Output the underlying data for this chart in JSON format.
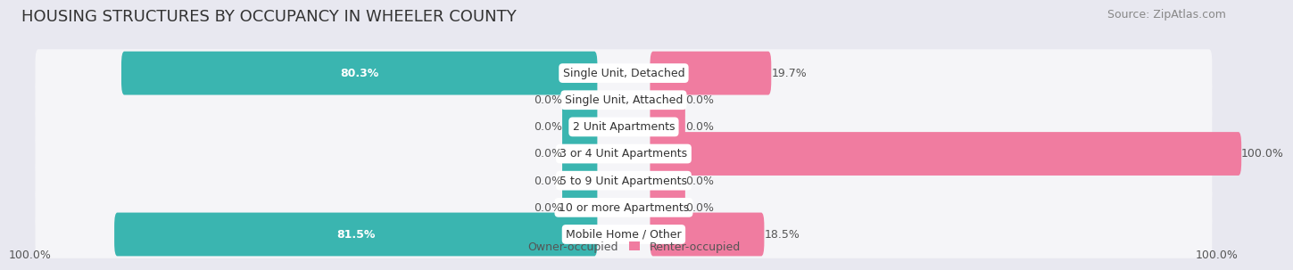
{
  "title": "HOUSING STRUCTURES BY OCCUPANCY IN WHEELER COUNTY",
  "source": "Source: ZipAtlas.com",
  "categories": [
    "Single Unit, Detached",
    "Single Unit, Attached",
    "2 Unit Apartments",
    "3 or 4 Unit Apartments",
    "5 to 9 Unit Apartments",
    "10 or more Apartments",
    "Mobile Home / Other"
  ],
  "owner_values": [
    80.3,
    0.0,
    0.0,
    0.0,
    0.0,
    0.0,
    81.5
  ],
  "renter_values": [
    19.7,
    0.0,
    0.0,
    100.0,
    0.0,
    0.0,
    18.5
  ],
  "owner_color": "#3ab5b0",
  "renter_color": "#f07ca0",
  "owner_label": "Owner-occupied",
  "renter_label": "Renter-occupied",
  "background_color": "#e8e8f0",
  "bar_background_color": "#f5f5f8",
  "bar_height": 0.62,
  "stub_size": 5.0,
  "x_left_label": "100.0%",
  "x_right_label": "100.0%",
  "title_fontsize": 13,
  "source_fontsize": 9,
  "bar_label_fontsize": 9,
  "category_fontsize": 9,
  "legend_fontsize": 9
}
